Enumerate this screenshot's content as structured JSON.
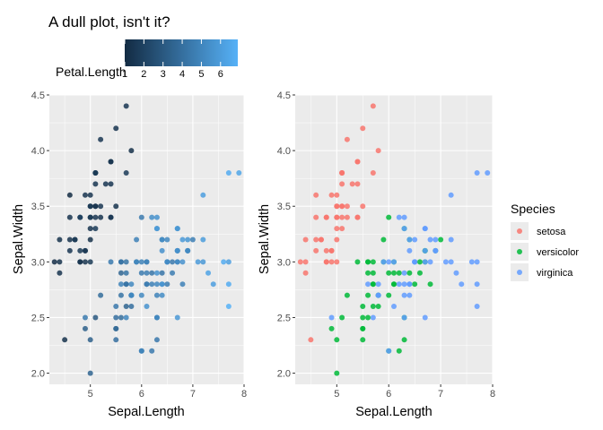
{
  "figure": {
    "title": "A dull plot, isn't it?"
  },
  "colors": {
    "panel_bg": "#EBEBEB",
    "grid_major": "#FFFFFF",
    "grad_low": "#132B43",
    "grad_high": "#56B1F7",
    "setosa": "#F8766D",
    "versicolor": "#00BA38",
    "virginica": "#619CFF"
  },
  "chart_data": [
    {
      "type": "scatter",
      "xlabel": "Sepal.Length",
      "ylabel": "Sepal.Width",
      "xlim": [
        4.2,
        8.0
      ],
      "ylim": [
        1.9,
        4.5
      ],
      "x_ticks": [
        5,
        6,
        7,
        8
      ],
      "y_ticks": [
        2.0,
        2.5,
        3.0,
        3.5,
        4.0,
        4.5
      ],
      "y_tick_labels": [
        "2.0",
        "2.5",
        "3.0",
        "3.5",
        "4.0",
        "4.5"
      ],
      "color_by": "Petal.Length",
      "legend": {
        "title": "Petal.Length",
        "position": "top",
        "range": [
          1,
          6.9
        ],
        "ticks": [
          1,
          2,
          3,
          4,
          5,
          6
        ]
      },
      "grid": true
    },
    {
      "type": "scatter",
      "xlabel": "Sepal.Length",
      "ylabel": "Sepal.Width",
      "xlim": [
        4.2,
        8.0
      ],
      "ylim": [
        1.9,
        4.5
      ],
      "x_ticks": [
        5,
        6,
        7,
        8
      ],
      "y_ticks": [
        2.0,
        2.5,
        3.0,
        3.5,
        4.0,
        4.5
      ],
      "y_tick_labels": [
        "2.0",
        "2.5",
        "3.0",
        "3.5",
        "4.0",
        "4.5"
      ],
      "color_by": "Species",
      "legend": {
        "title": "Species",
        "position": "right",
        "entries": [
          "setosa",
          "versicolor",
          "virginica"
        ]
      },
      "grid": true
    }
  ],
  "points": {
    "fields": [
      "sepal_length",
      "sepal_width",
      "petal_length",
      "species"
    ],
    "rows": [
      [
        5.1,
        3.5,
        1.4,
        "setosa"
      ],
      [
        4.9,
        3.0,
        1.4,
        "setosa"
      ],
      [
        4.7,
        3.2,
        1.3,
        "setosa"
      ],
      [
        4.6,
        3.1,
        1.5,
        "setosa"
      ],
      [
        5.0,
        3.6,
        1.4,
        "setosa"
      ],
      [
        5.4,
        3.9,
        1.7,
        "setosa"
      ],
      [
        4.6,
        3.4,
        1.4,
        "setosa"
      ],
      [
        5.0,
        3.4,
        1.5,
        "setosa"
      ],
      [
        4.4,
        2.9,
        1.4,
        "setosa"
      ],
      [
        4.9,
        3.1,
        1.5,
        "setosa"
      ],
      [
        5.4,
        3.7,
        1.5,
        "setosa"
      ],
      [
        4.8,
        3.4,
        1.6,
        "setosa"
      ],
      [
        4.8,
        3.0,
        1.4,
        "setosa"
      ],
      [
        4.3,
        3.0,
        1.1,
        "setosa"
      ],
      [
        5.8,
        4.0,
        1.2,
        "setosa"
      ],
      [
        5.7,
        4.4,
        1.5,
        "setosa"
      ],
      [
        5.4,
        3.9,
        1.3,
        "setosa"
      ],
      [
        5.1,
        3.5,
        1.4,
        "setosa"
      ],
      [
        5.7,
        3.8,
        1.7,
        "setosa"
      ],
      [
        5.1,
        3.8,
        1.5,
        "setosa"
      ],
      [
        5.4,
        3.4,
        1.7,
        "setosa"
      ],
      [
        5.1,
        3.7,
        1.5,
        "setosa"
      ],
      [
        4.6,
        3.6,
        1.0,
        "setosa"
      ],
      [
        5.1,
        3.3,
        1.7,
        "setosa"
      ],
      [
        4.8,
        3.4,
        1.9,
        "setosa"
      ],
      [
        5.0,
        3.0,
        1.6,
        "setosa"
      ],
      [
        5.0,
        3.4,
        1.6,
        "setosa"
      ],
      [
        5.2,
        3.5,
        1.5,
        "setosa"
      ],
      [
        5.2,
        3.4,
        1.4,
        "setosa"
      ],
      [
        4.7,
        3.2,
        1.6,
        "setosa"
      ],
      [
        4.8,
        3.1,
        1.6,
        "setosa"
      ],
      [
        5.4,
        3.4,
        1.5,
        "setosa"
      ],
      [
        5.2,
        4.1,
        1.5,
        "setosa"
      ],
      [
        5.5,
        4.2,
        1.4,
        "setosa"
      ],
      [
        4.9,
        3.1,
        1.5,
        "setosa"
      ],
      [
        5.0,
        3.2,
        1.2,
        "setosa"
      ],
      [
        5.5,
        3.5,
        1.3,
        "setosa"
      ],
      [
        4.9,
        3.6,
        1.4,
        "setosa"
      ],
      [
        4.4,
        3.0,
        1.3,
        "setosa"
      ],
      [
        5.1,
        3.4,
        1.5,
        "setosa"
      ],
      [
        5.0,
        3.5,
        1.3,
        "setosa"
      ],
      [
        4.5,
        2.3,
        1.3,
        "setosa"
      ],
      [
        4.4,
        3.2,
        1.3,
        "setosa"
      ],
      [
        5.0,
        3.5,
        1.6,
        "setosa"
      ],
      [
        5.1,
        3.8,
        1.9,
        "setosa"
      ],
      [
        4.8,
        3.0,
        1.4,
        "setosa"
      ],
      [
        5.1,
        3.8,
        1.6,
        "setosa"
      ],
      [
        4.6,
        3.2,
        1.4,
        "setosa"
      ],
      [
        5.3,
        3.7,
        1.5,
        "setosa"
      ],
      [
        5.0,
        3.3,
        1.4,
        "setosa"
      ],
      [
        7.0,
        3.2,
        4.7,
        "versicolor"
      ],
      [
        6.4,
        3.2,
        4.5,
        "versicolor"
      ],
      [
        6.9,
        3.1,
        4.9,
        "versicolor"
      ],
      [
        5.5,
        2.3,
        4.0,
        "versicolor"
      ],
      [
        6.5,
        2.8,
        4.6,
        "versicolor"
      ],
      [
        5.7,
        2.8,
        4.5,
        "versicolor"
      ],
      [
        6.3,
        3.3,
        4.7,
        "versicolor"
      ],
      [
        4.9,
        2.4,
        3.3,
        "versicolor"
      ],
      [
        6.6,
        2.9,
        4.6,
        "versicolor"
      ],
      [
        5.2,
        2.7,
        3.9,
        "versicolor"
      ],
      [
        5.0,
        2.0,
        3.5,
        "versicolor"
      ],
      [
        5.9,
        3.0,
        4.2,
        "versicolor"
      ],
      [
        6.0,
        2.2,
        4.0,
        "versicolor"
      ],
      [
        6.1,
        2.9,
        4.7,
        "versicolor"
      ],
      [
        5.6,
        2.9,
        3.6,
        "versicolor"
      ],
      [
        6.7,
        3.1,
        4.4,
        "versicolor"
      ],
      [
        5.6,
        3.0,
        4.5,
        "versicolor"
      ],
      [
        5.8,
        2.7,
        4.1,
        "versicolor"
      ],
      [
        6.2,
        2.2,
        4.5,
        "versicolor"
      ],
      [
        5.6,
        2.5,
        3.9,
        "versicolor"
      ],
      [
        5.9,
        3.2,
        4.8,
        "versicolor"
      ],
      [
        6.1,
        2.8,
        4.0,
        "versicolor"
      ],
      [
        6.3,
        2.5,
        4.9,
        "versicolor"
      ],
      [
        6.1,
        2.8,
        4.7,
        "versicolor"
      ],
      [
        6.4,
        2.9,
        4.3,
        "versicolor"
      ],
      [
        6.6,
        3.0,
        4.4,
        "versicolor"
      ],
      [
        6.8,
        2.8,
        4.8,
        "versicolor"
      ],
      [
        6.7,
        3.0,
        5.0,
        "versicolor"
      ],
      [
        6.0,
        2.9,
        4.5,
        "versicolor"
      ],
      [
        5.7,
        2.6,
        3.5,
        "versicolor"
      ],
      [
        5.5,
        2.4,
        3.8,
        "versicolor"
      ],
      [
        5.5,
        2.4,
        3.7,
        "versicolor"
      ],
      [
        5.8,
        2.7,
        3.9,
        "versicolor"
      ],
      [
        6.0,
        2.7,
        5.1,
        "versicolor"
      ],
      [
        5.4,
        3.0,
        4.5,
        "versicolor"
      ],
      [
        6.0,
        3.4,
        4.5,
        "versicolor"
      ],
      [
        6.7,
        3.1,
        4.7,
        "versicolor"
      ],
      [
        6.3,
        2.3,
        4.4,
        "versicolor"
      ],
      [
        5.6,
        3.0,
        4.1,
        "versicolor"
      ],
      [
        5.5,
        2.5,
        4.0,
        "versicolor"
      ],
      [
        5.5,
        2.6,
        4.4,
        "versicolor"
      ],
      [
        6.1,
        3.0,
        4.6,
        "versicolor"
      ],
      [
        5.8,
        2.6,
        4.0,
        "versicolor"
      ],
      [
        5.0,
        2.3,
        3.3,
        "versicolor"
      ],
      [
        5.6,
        2.7,
        4.2,
        "versicolor"
      ],
      [
        5.7,
        3.0,
        4.2,
        "versicolor"
      ],
      [
        5.7,
        2.9,
        4.2,
        "versicolor"
      ],
      [
        6.2,
        2.9,
        4.3,
        "versicolor"
      ],
      [
        5.1,
        2.5,
        3.0,
        "versicolor"
      ],
      [
        5.7,
        2.8,
        4.1,
        "versicolor"
      ],
      [
        6.3,
        3.3,
        6.0,
        "virginica"
      ],
      [
        5.8,
        2.7,
        5.1,
        "virginica"
      ],
      [
        7.1,
        3.0,
        5.9,
        "virginica"
      ],
      [
        6.3,
        2.9,
        5.6,
        "virginica"
      ],
      [
        6.5,
        3.0,
        5.8,
        "virginica"
      ],
      [
        7.6,
        3.0,
        6.6,
        "virginica"
      ],
      [
        4.9,
        2.5,
        4.5,
        "virginica"
      ],
      [
        7.3,
        2.9,
        6.3,
        "virginica"
      ],
      [
        6.7,
        2.5,
        5.8,
        "virginica"
      ],
      [
        7.2,
        3.6,
        6.1,
        "virginica"
      ],
      [
        6.5,
        3.2,
        5.1,
        "virginica"
      ],
      [
        6.4,
        2.7,
        5.3,
        "virginica"
      ],
      [
        6.8,
        3.0,
        5.5,
        "virginica"
      ],
      [
        5.7,
        2.5,
        5.0,
        "virginica"
      ],
      [
        5.8,
        2.8,
        5.1,
        "virginica"
      ],
      [
        6.4,
        3.2,
        5.3,
        "virginica"
      ],
      [
        6.5,
        3.0,
        5.5,
        "virginica"
      ],
      [
        7.7,
        3.8,
        6.7,
        "virginica"
      ],
      [
        7.7,
        2.6,
        6.9,
        "virginica"
      ],
      [
        6.0,
        2.2,
        5.0,
        "virginica"
      ],
      [
        6.9,
        3.2,
        5.7,
        "virginica"
      ],
      [
        5.6,
        2.8,
        4.9,
        "virginica"
      ],
      [
        7.7,
        2.8,
        6.7,
        "virginica"
      ],
      [
        6.3,
        2.7,
        4.9,
        "virginica"
      ],
      [
        6.7,
        3.3,
        5.7,
        "virginica"
      ],
      [
        7.2,
        3.2,
        6.0,
        "virginica"
      ],
      [
        6.2,
        2.8,
        4.8,
        "virginica"
      ],
      [
        6.1,
        3.0,
        4.9,
        "virginica"
      ],
      [
        6.4,
        2.8,
        5.6,
        "virginica"
      ],
      [
        7.2,
        3.0,
        5.8,
        "virginica"
      ],
      [
        7.4,
        2.8,
        6.1,
        "virginica"
      ],
      [
        7.9,
        3.8,
        6.4,
        "virginica"
      ],
      [
        6.4,
        2.8,
        5.6,
        "virginica"
      ],
      [
        6.3,
        2.8,
        5.1,
        "virginica"
      ],
      [
        6.1,
        2.6,
        5.6,
        "virginica"
      ],
      [
        7.7,
        3.0,
        6.1,
        "virginica"
      ],
      [
        6.3,
        3.4,
        5.6,
        "virginica"
      ],
      [
        6.4,
        3.1,
        5.5,
        "virginica"
      ],
      [
        6.0,
        3.0,
        4.8,
        "virginica"
      ],
      [
        6.9,
        3.1,
        5.4,
        "virginica"
      ],
      [
        6.7,
        3.1,
        5.6,
        "virginica"
      ],
      [
        6.9,
        3.1,
        5.1,
        "virginica"
      ],
      [
        5.8,
        2.7,
        5.1,
        "virginica"
      ],
      [
        6.8,
        3.2,
        5.9,
        "virginica"
      ],
      [
        6.7,
        3.3,
        5.7,
        "virginica"
      ],
      [
        6.7,
        3.0,
        5.2,
        "virginica"
      ],
      [
        6.3,
        2.5,
        5.0,
        "virginica"
      ],
      [
        6.5,
        3.0,
        5.2,
        "virginica"
      ],
      [
        6.2,
        3.4,
        5.4,
        "virginica"
      ],
      [
        5.9,
        3.0,
        5.1,
        "virginica"
      ]
    ]
  }
}
